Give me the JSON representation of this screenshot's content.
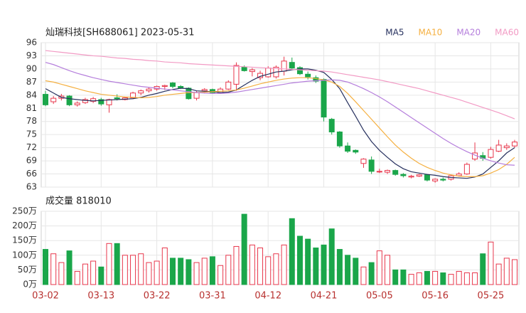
{
  "chart_data": [
    {
      "type": "candlestick",
      "title": "灿瑞科技[SH688061] 2023-05-31",
      "categories": [
        "03-02",
        null,
        null,
        null,
        null,
        null,
        null,
        "03-13",
        null,
        null,
        null,
        null,
        null,
        null,
        "03-22",
        null,
        null,
        null,
        null,
        null,
        null,
        "03-31",
        null,
        null,
        null,
        null,
        null,
        null,
        "04-12",
        null,
        null,
        null,
        null,
        null,
        null,
        "04-21",
        null,
        null,
        null,
        null,
        null,
        null,
        "05-05",
        null,
        null,
        null,
        null,
        null,
        null,
        "05-16",
        null,
        null,
        null,
        null,
        null,
        null,
        "05-25",
        null,
        null,
        null
      ],
      "open": [
        84.2,
        82.5,
        83.3,
        83.8,
        81.8,
        82.3,
        82.6,
        83,
        81.8,
        83.4,
        83,
        83.4,
        84.5,
        85,
        85.4,
        86,
        86.8,
        86,
        85.6,
        83.3,
        85,
        85.3,
        84.6,
        85.4,
        86.5,
        90.4,
        89.4,
        88,
        88.2,
        88.2,
        89.5,
        91.5,
        90.3,
        88.8,
        88,
        87.6,
        78.5,
        75.6,
        72.4,
        71.4,
        68.4,
        69.2,
        66.6,
        66.4,
        66.8,
        65.9,
        65.3,
        65.5,
        65.8,
        64.4,
        64.8,
        64.8,
        65.6,
        66,
        69.4,
        70.2,
        69.8,
        71.2,
        72,
        72.4
      ],
      "high": [
        85,
        83.8,
        84.3,
        84,
        82.6,
        83.4,
        83.6,
        83.4,
        83.2,
        84.2,
        83.6,
        84.8,
        85.3,
        85.8,
        86.2,
        86.4,
        87,
        86.3,
        85.8,
        85,
        85.6,
        85.5,
        85.8,
        87.4,
        91.5,
        90.8,
        90.2,
        89.6,
        90.6,
        90.8,
        92.8,
        92.6,
        90.6,
        89.4,
        88.5,
        87.8,
        78.8,
        75.8,
        73.2,
        71.6,
        69.6,
        70,
        67.2,
        67,
        67,
        66.2,
        65.8,
        66,
        66,
        65,
        65.2,
        65.8,
        66.4,
        68.6,
        73.2,
        71,
        72.2,
        73.8,
        73,
        73.8
      ],
      "low": [
        81.5,
        82,
        82.8,
        81.5,
        81.4,
        82,
        82.2,
        81.6,
        80,
        82.8,
        82.8,
        83.2,
        84,
        84.6,
        85,
        85.2,
        85.6,
        85.4,
        83,
        82.8,
        84.4,
        84.4,
        84.4,
        85.2,
        85,
        89.4,
        88.3,
        87.4,
        88,
        87.8,
        88.5,
        90,
        88.6,
        87.6,
        86.8,
        78,
        75,
        72,
        70.8,
        70.6,
        67.4,
        66,
        66.2,
        66,
        65.6,
        65.2,
        65,
        65.3,
        64.3,
        64,
        64.3,
        64.5,
        65.4,
        65.8,
        69,
        69,
        69.5,
        71,
        71.5,
        72
      ],
      "close": [
        81.8,
        83.3,
        83.8,
        81.8,
        82.2,
        83,
        83.2,
        82,
        83,
        83.2,
        83.4,
        84.5,
        85,
        85.4,
        86,
        86.2,
        86,
        85.6,
        83.2,
        84.6,
        85.3,
        84.6,
        85.4,
        87,
        90.8,
        89.6,
        89.8,
        89,
        90.2,
        90.4,
        91.8,
        90.2,
        88.9,
        88.2,
        87.2,
        79,
        75.6,
        72.4,
        71.2,
        71,
        69.4,
        66.6,
        66.6,
        66.8,
        65.9,
        65.6,
        65.5,
        65.8,
        64.6,
        64.8,
        64.6,
        65.6,
        66,
        68.2,
        70.8,
        69.6,
        71.6,
        72.6,
        72.4,
        73.3
      ],
      "up_color": "#e8374c",
      "down_color": "#1aa64a",
      "series": [
        {
          "name": "MA5",
          "color": "#26305e",
          "values": [
            85.5,
            84.5,
            83.5,
            83.2,
            83,
            82.8,
            82.7,
            82.8,
            82.9,
            83,
            83.1,
            83.2,
            83.5,
            84,
            84.4,
            84.9,
            85.3,
            85.6,
            85.5,
            85,
            84.9,
            84.8,
            84.6,
            84.7,
            85.2,
            86.3,
            87.4,
            88.3,
            88.8,
            89.3,
            89.5,
            89.8,
            90,
            90,
            89.7,
            89.2,
            87.6,
            85.5,
            82.3,
            79.2,
            76,
            73.4,
            71.4,
            69.8,
            68.3,
            67.2,
            66.5,
            66.2,
            65.9,
            65.7,
            65.4,
            65.2,
            65.1,
            65,
            65.3,
            66,
            67.5,
            69,
            70.8,
            72
          ]
        },
        {
          "name": "MA10",
          "color": "#f5b041",
          "values": [
            87.3,
            87,
            86.5,
            86,
            85.5,
            85,
            84.6,
            84.2,
            84,
            83.8,
            83.6,
            83.5,
            83.4,
            83.5,
            83.7,
            84,
            84.2,
            84.4,
            84.6,
            84.6,
            84.7,
            84.8,
            84.9,
            85,
            85.2,
            85.6,
            86.1,
            86.6,
            87,
            87.4,
            87.7,
            87.9,
            88,
            88,
            87.8,
            87.5,
            87,
            86,
            84.4,
            82.5,
            80.5,
            78.5,
            76.5,
            74.5,
            72.6,
            71,
            69.6,
            68.4,
            67.5,
            66.8,
            66.2,
            65.8,
            65.5,
            65.4,
            65.4,
            65.6,
            66.2,
            67,
            68.2,
            69.8
          ]
        },
        {
          "name": "MA20",
          "color": "#b57edc",
          "values": [
            91.5,
            91,
            90.3,
            89.6,
            89,
            88.5,
            88,
            87.6,
            87.2,
            86.9,
            86.6,
            86.3,
            86,
            85.8,
            85.6,
            85.4,
            85.2,
            85,
            84.8,
            84.6,
            84.5,
            84.4,
            84.4,
            84.5,
            84.7,
            85,
            85.3,
            85.6,
            85.9,
            86.2,
            86.5,
            86.8,
            87,
            87.2,
            87.3,
            87.4,
            87.5,
            87.4,
            87,
            86.3,
            85.5,
            84.6,
            83.6,
            82.5,
            81.3,
            80.1,
            78.9,
            77.7,
            76.5,
            75.3,
            74.1,
            73,
            72,
            71.1,
            70.3,
            69.6,
            69,
            68.5,
            68.1,
            68
          ]
        },
        {
          "name": "MA60",
          "color": "#f29ac4",
          "values": [
            94.2,
            94,
            93.8,
            93.6,
            93.4,
            93.2,
            93,
            92.9,
            92.7,
            92.5,
            92.4,
            92.2,
            92.1,
            91.9,
            91.8,
            91.6,
            91.5,
            91.4,
            91.2,
            91.1,
            91,
            90.9,
            90.8,
            90.7,
            90.6,
            90.5,
            90.4,
            90.3,
            90.2,
            90.1,
            90,
            89.9,
            89.8,
            89.7,
            89.6,
            89.5,
            89.3,
            89,
            88.7,
            88.4,
            88.1,
            87.8,
            87.5,
            87.1,
            86.7,
            86.3,
            85.9,
            85.5,
            85,
            84.5,
            84,
            83.5,
            83,
            82.4,
            81.8,
            81.2,
            80.6,
            80,
            79.3,
            78.6
          ]
        }
      ],
      "ylim": [
        63,
        96
      ],
      "yticks": [
        63,
        66,
        69,
        72,
        75,
        78,
        81,
        84,
        87,
        90,
        93,
        96
      ],
      "grid": true,
      "legend": "top-right"
    },
    {
      "type": "bar",
      "title": "成交量 818010",
      "values": [
        120,
        105,
        75,
        115,
        45,
        70,
        80,
        60,
        140,
        140,
        100,
        100,
        105,
        75,
        80,
        125,
        90,
        90,
        85,
        75,
        90,
        95,
        65,
        100,
        130,
        240,
        135,
        125,
        95,
        105,
        135,
        225,
        165,
        155,
        125,
        135,
        190,
        120,
        100,
        90,
        60,
        75,
        115,
        100,
        50,
        50,
        35,
        40,
        45,
        45,
        40,
        35,
        45,
        40,
        40,
        105,
        145,
        70,
        90,
        85
      ],
      "ylim": [
        0,
        250
      ],
      "yticks": [
        {
          "value": 0,
          "label": "0万"
        },
        {
          "value": 50,
          "label": "50万"
        },
        {
          "value": 100,
          "label": "100万"
        },
        {
          "value": 150,
          "label": "150万"
        },
        {
          "value": 200,
          "label": "200万"
        },
        {
          "value": 250,
          "label": "250万"
        }
      ],
      "grid": true
    }
  ]
}
